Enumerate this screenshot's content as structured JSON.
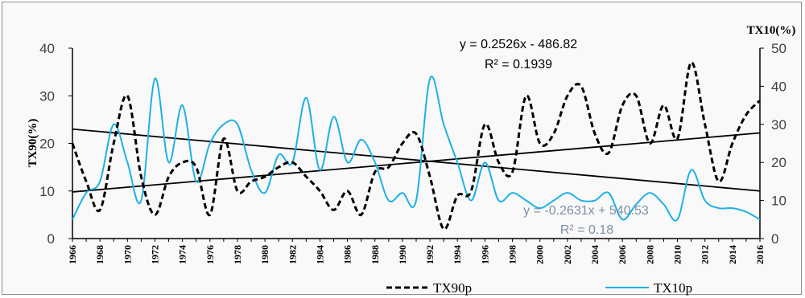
{
  "chart_data": {
    "type": "line",
    "x": [
      1966,
      1967,
      1968,
      1969,
      1970,
      1971,
      1972,
      1973,
      1974,
      1975,
      1976,
      1977,
      1978,
      1979,
      1980,
      1981,
      1982,
      1983,
      1984,
      1985,
      1986,
      1987,
      1988,
      1989,
      1990,
      1991,
      1992,
      1993,
      1994,
      1995,
      1996,
      1997,
      1998,
      1999,
      2000,
      2001,
      2002,
      2003,
      2004,
      2005,
      2006,
      2007,
      2008,
      2009,
      2010,
      2011,
      2012,
      2013,
      2014,
      2015,
      2016
    ],
    "x_tick_labels": [
      "1966",
      "1968",
      "1970",
      "1972",
      "1974",
      "1976",
      "1978",
      "1980",
      "1982",
      "1984",
      "1986",
      "1988",
      "1990",
      "1992",
      "1994",
      "1996",
      "1998",
      "2000",
      "2002",
      "2004",
      "2006",
      "2008",
      "2010",
      "2012",
      "2014",
      "2016"
    ],
    "series": [
      {
        "name": "TX90p",
        "axis": "left",
        "style": "dashed",
        "color": "#000000",
        "values": [
          20,
          12,
          6,
          20,
          30,
          13,
          5,
          13,
          16,
          15,
          5,
          21,
          10,
          12,
          13,
          15,
          16,
          13,
          10,
          6,
          10,
          5,
          14,
          15,
          20,
          22,
          13,
          2,
          9,
          10,
          24,
          16,
          14,
          30,
          20,
          22,
          30,
          32,
          22,
          18,
          28,
          30,
          20,
          28,
          21,
          37,
          24,
          12,
          20,
          26,
          29
        ]
      },
      {
        "name": "TX10p",
        "axis": "right",
        "style": "solid",
        "color": "#1fb0e6",
        "values": [
          5,
          12,
          15,
          30,
          20,
          10,
          42,
          20,
          35,
          15,
          25,
          30,
          30,
          18,
          12,
          22,
          20,
          37,
          18,
          32,
          20,
          26,
          20,
          10,
          12,
          10,
          42,
          30,
          20,
          10,
          20,
          10,
          12,
          10,
          8,
          10,
          12,
          10,
          10,
          12,
          5,
          9,
          12,
          9,
          5,
          18,
          10,
          8,
          8,
          7,
          5
        ]
      }
    ],
    "trendlines": [
      {
        "series": "TX90p",
        "equation": "y = 0.2526x - 486.82",
        "r2": "R² = 0.1939",
        "start": [
          1966,
          9.8
        ],
        "end": [
          2016,
          22.2
        ]
      },
      {
        "series": "TX10p",
        "equation": "y = -0.2631x + 540.53",
        "r2": "R² = 0.18",
        "start": [
          1966,
          23
        ],
        "end": [
          2016,
          10
        ]
      }
    ],
    "y_left": {
      "label": "TX90(%)",
      "ylim": [
        0,
        40
      ],
      "ticks": [
        "0",
        "10",
        "20",
        "30",
        "40"
      ]
    },
    "y_right": {
      "label": "TX10(%)",
      "ylim": [
        0,
        50
      ],
      "ticks": [
        "0",
        "10",
        "20",
        "30",
        "40",
        "50"
      ]
    },
    "title": "",
    "grid": false,
    "legend": "bottom"
  },
  "legend": {
    "items": [
      "TX90p",
      "TX10p"
    ]
  }
}
